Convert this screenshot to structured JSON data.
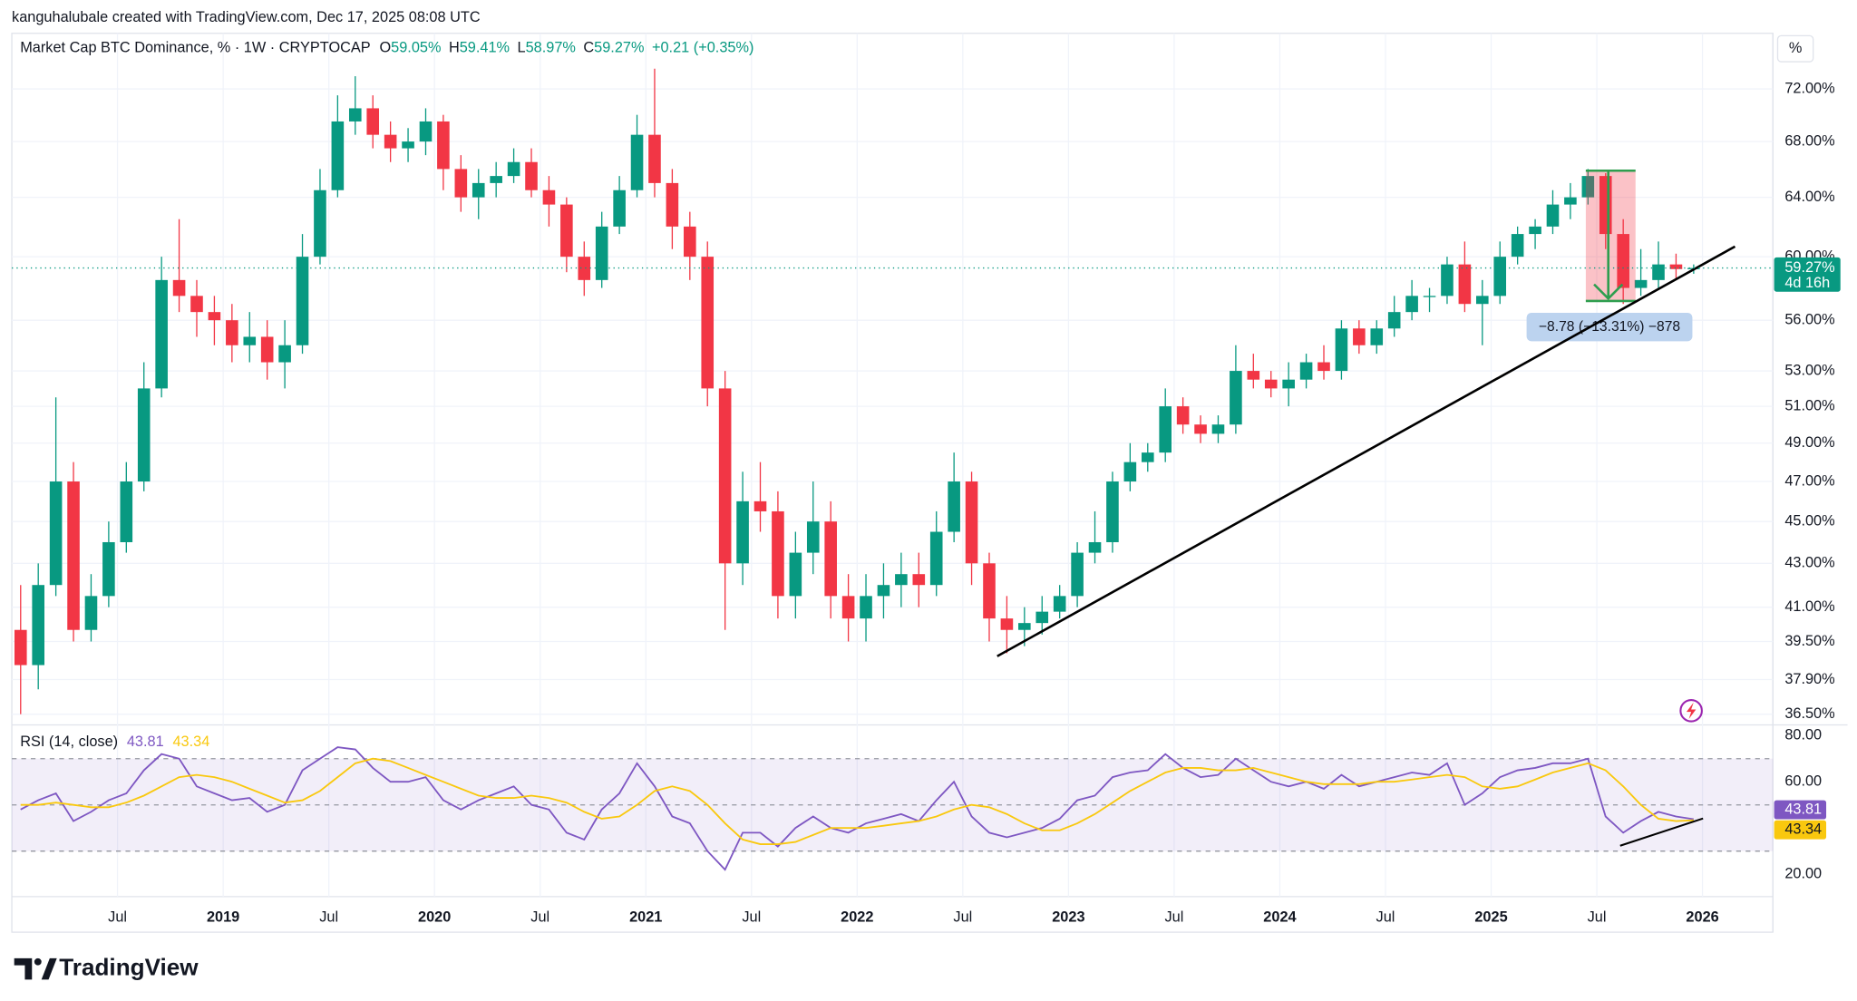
{
  "header": {
    "credit": "kanguhalubale created with TradingView.com, Dec 17, 2025 08:08 UTC"
  },
  "legend": {
    "symbol": "Market Cap BTC Dominance, % · 1W · CRYPTOCAP",
    "ohlc": [
      {
        "key": "O",
        "value": "59.05%"
      },
      {
        "key": "H",
        "value": "59.41%"
      },
      {
        "key": "L",
        "value": "58.97%"
      },
      {
        "key": "C",
        "value": "59.27%"
      }
    ],
    "change": "+0.21 (+0.35%)"
  },
  "axis_unit": "%",
  "last_price_label": "59.27%",
  "countdown": "4d 16h",
  "measure_label": "−8.78 (−13.31%) −878",
  "brand": "TradingView",
  "chart_data": {
    "type": "candlestick",
    "log_scale": true,
    "grid": true,
    "up_color": "#089981",
    "down_color": "#f23645",
    "x": [
      "2018-01",
      "2018-02",
      "2018-03",
      "2018-04",
      "2018-05",
      "2018-06",
      "2018-07",
      "2018-08",
      "2018-09",
      "2018-10",
      "2018-11",
      "2018-12",
      "2019-01",
      "2019-02",
      "2019-03",
      "2019-04",
      "2019-05",
      "2019-06",
      "2019-07",
      "2019-08",
      "2019-09",
      "2019-10",
      "2019-11",
      "2019-12",
      "2020-01",
      "2020-02",
      "2020-03",
      "2020-04",
      "2020-05",
      "2020-06",
      "2020-07",
      "2020-08",
      "2020-09",
      "2020-10",
      "2020-11",
      "2020-12",
      "2021-01",
      "2021-02",
      "2021-03",
      "2021-04",
      "2021-05",
      "2021-06",
      "2021-07",
      "2021-08",
      "2021-09",
      "2021-10",
      "2021-11",
      "2021-12",
      "2022-01",
      "2022-02",
      "2022-03",
      "2022-04",
      "2022-05",
      "2022-06",
      "2022-07",
      "2022-08",
      "2022-09",
      "2022-10",
      "2022-11",
      "2022-12",
      "2023-01",
      "2023-02",
      "2023-03",
      "2023-04",
      "2023-05",
      "2023-06",
      "2023-07",
      "2023-08",
      "2023-09",
      "2023-10",
      "2023-11",
      "2023-12",
      "2024-01",
      "2024-02",
      "2024-03",
      "2024-04",
      "2024-05",
      "2024-06",
      "2024-07",
      "2024-08",
      "2024-09",
      "2024-10",
      "2024-11",
      "2024-12",
      "2025-01",
      "2025-02",
      "2025-03",
      "2025-04",
      "2025-05",
      "2025-06",
      "2025-07",
      "2025-08",
      "2025-09",
      "2025-10",
      "2025-11",
      "2025-12"
    ],
    "open": [
      40.0,
      38.5,
      42.0,
      47.0,
      40.0,
      41.5,
      44.0,
      47.0,
      52.0,
      58.5,
      57.5,
      56.5,
      56.0,
      54.5,
      55.0,
      53.5,
      54.5,
      60.0,
      64.5,
      69.5,
      70.5,
      68.5,
      67.5,
      68.0,
      69.5,
      66.0,
      64.0,
      65.0,
      65.5,
      66.5,
      64.5,
      63.5,
      60.0,
      58.5,
      62.0,
      64.5,
      68.5,
      65.0,
      62.0,
      60.0,
      52.0,
      43.0,
      46.0,
      45.5,
      41.5,
      43.5,
      45.0,
      41.5,
      40.5,
      41.5,
      42.0,
      42.5,
      42.0,
      44.5,
      47.0,
      43.0,
      40.5,
      40.0,
      40.3,
      40.8,
      41.5,
      43.5,
      44.0,
      47.0,
      48.0,
      48.5,
      51.0,
      50.0,
      49.5,
      50.0,
      53.0,
      52.5,
      52.0,
      52.5,
      53.5,
      53.0,
      55.5,
      54.5,
      55.5,
      56.5,
      57.5,
      57.5,
      59.5,
      57.0,
      57.5,
      60.0,
      61.5,
      62.0,
      63.5,
      64.0,
      65.5,
      61.5,
      58.0,
      58.5,
      59.5,
      59.2
    ],
    "high": [
      42.0,
      43.0,
      51.5,
      48.0,
      42.5,
      45.0,
      48.0,
      53.5,
      60.0,
      62.5,
      58.5,
      57.5,
      57.0,
      56.5,
      56.0,
      56.0,
      61.5,
      66.0,
      71.5,
      73.0,
      71.5,
      69.5,
      69.0,
      70.5,
      70.0,
      67.0,
      66.0,
      66.5,
      67.5,
      67.5,
      65.5,
      64.0,
      61.0,
      63.0,
      65.5,
      70.0,
      73.6,
      66.0,
      63.0,
      61.0,
      53.0,
      47.5,
      48.0,
      46.5,
      44.5,
      47.0,
      46.0,
      42.5,
      42.5,
      43.0,
      43.5,
      43.5,
      45.5,
      48.5,
      47.5,
      43.5,
      41.5,
      41.0,
      41.5,
      42.0,
      44.0,
      45.5,
      47.5,
      49.0,
      49.0,
      52.0,
      51.5,
      50.5,
      50.5,
      54.5,
      54.0,
      53.0,
      53.5,
      54.0,
      54.5,
      56.0,
      56.0,
      56.0,
      57.5,
      58.5,
      58.0,
      60.0,
      61.0,
      58.5,
      61.0,
      62.0,
      62.5,
      64.5,
      65.0,
      66.0,
      65.7,
      62.5,
      60.5,
      61.0,
      60.2,
      59.5
    ],
    "low": [
      36.5,
      37.5,
      41.5,
      39.5,
      39.5,
      41.0,
      43.5,
      46.5,
      51.5,
      56.5,
      55.0,
      54.5,
      53.5,
      53.5,
      52.5,
      52.0,
      54.0,
      59.5,
      64.0,
      68.5,
      67.5,
      66.5,
      66.5,
      67.0,
      64.5,
      63.0,
      62.5,
      64.0,
      65.0,
      64.0,
      62.0,
      59.0,
      57.5,
      58.0,
      61.5,
      64.0,
      64.0,
      60.5,
      58.5,
      51.0,
      40.0,
      42.0,
      44.5,
      40.5,
      40.5,
      42.5,
      40.5,
      39.5,
      39.5,
      40.5,
      41.0,
      41.0,
      41.5,
      44.0,
      42.0,
      39.5,
      39.0,
      39.3,
      39.8,
      40.5,
      41.0,
      43.0,
      43.5,
      46.5,
      47.5,
      48.0,
      49.5,
      49.0,
      49.0,
      49.5,
      52.0,
      51.5,
      51.0,
      52.0,
      52.5,
      52.5,
      54.0,
      54.0,
      55.0,
      56.0,
      56.5,
      57.0,
      56.5,
      54.5,
      57.0,
      59.5,
      60.5,
      61.5,
      62.5,
      63.5,
      60.5,
      57.0,
      57.5,
      58.0,
      58.5,
      58.9
    ],
    "close": [
      38.5,
      42.0,
      47.0,
      40.0,
      41.5,
      44.0,
      47.0,
      52.0,
      58.5,
      57.5,
      56.5,
      56.0,
      54.5,
      55.0,
      53.5,
      54.5,
      60.0,
      64.5,
      69.5,
      70.5,
      68.5,
      67.5,
      68.0,
      69.5,
      66.0,
      64.0,
      65.0,
      65.5,
      66.5,
      64.5,
      63.5,
      60.0,
      58.5,
      62.0,
      64.5,
      68.5,
      65.0,
      62.0,
      60.0,
      52.0,
      43.0,
      46.0,
      45.5,
      41.5,
      43.5,
      45.0,
      41.5,
      40.5,
      41.5,
      42.0,
      42.5,
      42.0,
      44.5,
      47.0,
      43.0,
      40.5,
      40.0,
      40.3,
      40.8,
      41.5,
      43.5,
      44.0,
      47.0,
      48.0,
      48.5,
      51.0,
      50.0,
      49.5,
      50.0,
      53.0,
      52.5,
      52.0,
      52.5,
      53.5,
      53.0,
      55.5,
      54.5,
      55.5,
      56.5,
      57.5,
      57.5,
      59.5,
      57.0,
      57.5,
      60.0,
      61.5,
      62.0,
      63.5,
      64.0,
      65.5,
      61.5,
      58.0,
      58.5,
      59.5,
      59.2,
      59.27
    ],
    "xlim": [
      "2018-01",
      "2026-05"
    ],
    "xticks": [
      {
        "value": "2018-07",
        "label": "Jul"
      },
      {
        "value": "2019-01",
        "label": "2019"
      },
      {
        "value": "2019-07",
        "label": "Jul"
      },
      {
        "value": "2020-01",
        "label": "2020"
      },
      {
        "value": "2020-07",
        "label": "Jul"
      },
      {
        "value": "2021-01",
        "label": "2021"
      },
      {
        "value": "2021-07",
        "label": "Jul"
      },
      {
        "value": "2022-01",
        "label": "2022"
      },
      {
        "value": "2022-07",
        "label": "Jul"
      },
      {
        "value": "2023-01",
        "label": "2023"
      },
      {
        "value": "2023-07",
        "label": "Jul"
      },
      {
        "value": "2024-01",
        "label": "2024"
      },
      {
        "value": "2024-07",
        "label": "Jul"
      },
      {
        "value": "2025-01",
        "label": "2025"
      },
      {
        "value": "2025-07",
        "label": "Jul"
      },
      {
        "value": "2026-01",
        "label": "2026"
      }
    ],
    "ylim": [
      36.17,
      74.35
    ],
    "yticks": [
      {
        "value": 72,
        "label": "72.00%"
      },
      {
        "value": 68,
        "label": "68.00%"
      },
      {
        "value": 64,
        "label": "64.00%"
      },
      {
        "value": 60,
        "label": "60.00%"
      },
      {
        "value": 56,
        "label": "56.00%"
      },
      {
        "value": 53,
        "label": "53.00%"
      },
      {
        "value": 51,
        "label": "51.00%"
      },
      {
        "value": 49,
        "label": "49.00%"
      },
      {
        "value": 47,
        "label": "47.00%"
      },
      {
        "value": 45,
        "label": "45.00%"
      },
      {
        "value": 43,
        "label": "43.00%"
      },
      {
        "value": 41,
        "label": "41.00%"
      },
      {
        "value": 39.5,
        "label": "39.50%"
      },
      {
        "value": 37.9,
        "label": "37.90%"
      },
      {
        "value": 36.5,
        "label": "36.50%"
      }
    ],
    "rsi": {
      "title": "RSI (14, close)",
      "ylim": [
        10.3,
        84.1
      ],
      "yticks": [
        {
          "value": 80,
          "label": "80.00"
        },
        {
          "value": 60,
          "label": "60.00"
        },
        {
          "value": 20,
          "label": "20.00"
        }
      ],
      "levels": [
        70,
        50,
        30
      ],
      "series": [
        {
          "color": "#7e57c2",
          "values": [
            48,
            52,
            55,
            43,
            47,
            52,
            55,
            65,
            72,
            70,
            58,
            55,
            52,
            53,
            47,
            50,
            65,
            70,
            75,
            74,
            66,
            60,
            60,
            62,
            52,
            48,
            52,
            55,
            58,
            50,
            48,
            38,
            35,
            48,
            55,
            68,
            58,
            45,
            42,
            30,
            22,
            38,
            38,
            32,
            40,
            45,
            40,
            38,
            42,
            44,
            46,
            43,
            52,
            60,
            45,
            38,
            36,
            38,
            40,
            44,
            52,
            54,
            62,
            64,
            65,
            72,
            66,
            62,
            63,
            70,
            65,
            60,
            58,
            60,
            57,
            63,
            58,
            60,
            62,
            64,
            63,
            68,
            50,
            55,
            62,
            65,
            66,
            68,
            68,
            70,
            45,
            38,
            43,
            47,
            45,
            43.81
          ]
        },
        {
          "color": "#f9c80e",
          "values": [
            50,
            50,
            51,
            50,
            49,
            49,
            51,
            54,
            58,
            62,
            63,
            62,
            60,
            57,
            54,
            51,
            52,
            56,
            62,
            68,
            70,
            69,
            66,
            63,
            60,
            57,
            54,
            53,
            53,
            54,
            53,
            51,
            47,
            44,
            45,
            50,
            56,
            58,
            56,
            50,
            42,
            35,
            33,
            33,
            34,
            37,
            40,
            40,
            40,
            41,
            42,
            43,
            45,
            48,
            50,
            49,
            46,
            42,
            39,
            39,
            42,
            46,
            51,
            56,
            60,
            64,
            66,
            66,
            65,
            65,
            66,
            64,
            62,
            60,
            59,
            59,
            59,
            60,
            60,
            61,
            62,
            63,
            62,
            58,
            57,
            58,
            61,
            64,
            66,
            68,
            65,
            58,
            50,
            44,
            43,
            43.34
          ]
        }
      ]
    }
  }
}
